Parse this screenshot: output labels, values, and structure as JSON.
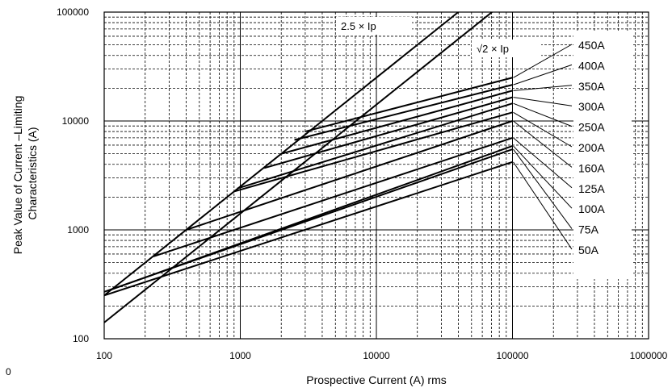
{
  "chart_data": {
    "type": "line",
    "title": "",
    "xlabel": "Prospective Current (A) rms",
    "ylabel": [
      "Peak Value of Current –Limiting",
      "Characteristics (A)"
    ],
    "xscale": "log",
    "yscale": "log",
    "xlim": [
      100,
      1000000
    ],
    "ylim": [
      100,
      100000
    ],
    "x_tick_labels": [
      "100",
      "1000",
      "10000",
      "100000",
      "1000000"
    ],
    "y_tick_labels": [
      "100",
      "1000",
      "10000",
      "100000"
    ],
    "stray_label": "0",
    "grid": true,
    "reference_lines": [
      {
        "label_prefix": "2.5",
        "label_suffix": "× Ip",
        "points": [
          [
            100,
            250
          ],
          [
            40000,
            100000
          ]
        ]
      },
      {
        "label_prefix": "√2",
        "label_suffix": "× Ip",
        "points": [
          [
            100,
            141
          ],
          [
            70700,
            100000
          ]
        ]
      }
    ],
    "series": [
      {
        "name": "450A",
        "points": [
          [
            3000,
            8000
          ],
          [
            100000,
            25000
          ]
        ]
      },
      {
        "name": "400A",
        "points": [
          [
            2500,
            6700
          ],
          [
            100000,
            21500
          ]
        ]
      },
      {
        "name": "350A",
        "points": [
          [
            2000,
            5000
          ],
          [
            100000,
            19000
          ]
        ]
      },
      {
        "name": "300A",
        "points": [
          [
            1500,
            3700
          ],
          [
            100000,
            16500
          ]
        ]
      },
      {
        "name": "250A",
        "points": [
          [
            950,
            2400
          ],
          [
            100000,
            14500
          ]
        ]
      },
      {
        "name": "200A",
        "points": [
          [
            900,
            2250
          ],
          [
            100000,
            12000
          ]
        ]
      },
      {
        "name": "160A",
        "points": [
          [
            400,
            1000
          ],
          [
            100000,
            10000
          ]
        ]
      },
      {
        "name": "125A",
        "points": [
          [
            230,
            570
          ],
          [
            100000,
            7000
          ]
        ]
      },
      {
        "name": "100A",
        "points": [
          [
            110,
            280
          ],
          [
            100000,
            5900
          ]
        ]
      },
      {
        "name": "75A",
        "points": [
          [
            100,
            270
          ],
          [
            100000,
            5500
          ]
        ]
      },
      {
        "name": "50A",
        "points": [
          [
            100,
            250
          ],
          [
            100000,
            4200
          ]
        ]
      }
    ]
  }
}
